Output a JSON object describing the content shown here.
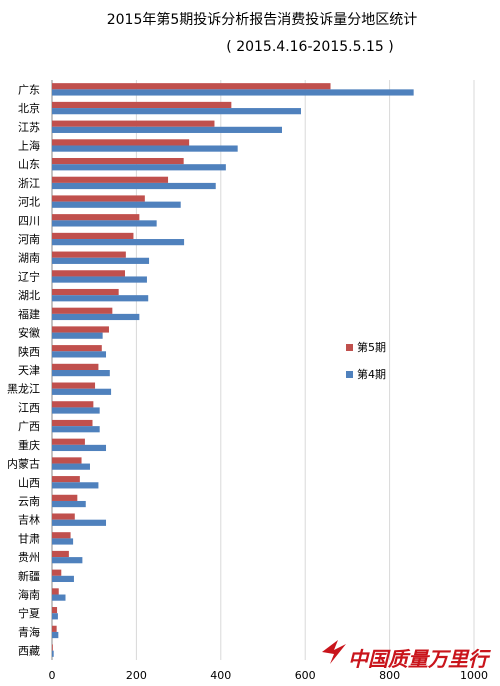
{
  "chart_data": {
    "type": "bar",
    "orientation": "horizontal",
    "title": "2015年第5期投诉分析报告消费投诉量分地区统计",
    "subtitle": "( 2015.4.16-2015.5.15 )",
    "categories": [
      "广东",
      "北京",
      "江苏",
      "上海",
      "山东",
      "浙江",
      "河北",
      "四川",
      "河南",
      "湖南",
      "辽宁",
      "湖北",
      "福建",
      "安徽",
      "陕西",
      "天津",
      "黑龙江",
      "江西",
      "广西",
      "重庆",
      "内蒙古",
      "山西",
      "云南",
      "吉林",
      "甘肃",
      "贵州",
      "新疆",
      "海南",
      "宁夏",
      "青海",
      "西藏"
    ],
    "series": [
      {
        "name": "第5期",
        "color": "#c0504d",
        "values": [
          660,
          425,
          385,
          325,
          312,
          275,
          220,
          207,
          193,
          175,
          173,
          158,
          143,
          135,
          118,
          110,
          102,
          98,
          96,
          78,
          70,
          66,
          60,
          54,
          44,
          40,
          22,
          16,
          12,
          11,
          2
        ]
      },
      {
        "name": "第4期",
        "color": "#4f81bd",
        "values": [
          857,
          590,
          545,
          440,
          412,
          388,
          305,
          248,
          313,
          230,
          225,
          228,
          207,
          120,
          128,
          137,
          140,
          113,
          113,
          128,
          90,
          110,
          80,
          128,
          50,
          72,
          52,
          32,
          14,
          15,
          4
        ]
      }
    ],
    "xlim": [
      0,
      1000
    ],
    "xticks": [
      0,
      200,
      400,
      600,
      800,
      1000
    ],
    "grid": true,
    "legend_position": "right"
  },
  "watermark": {
    "text": "中国质量万里行"
  }
}
